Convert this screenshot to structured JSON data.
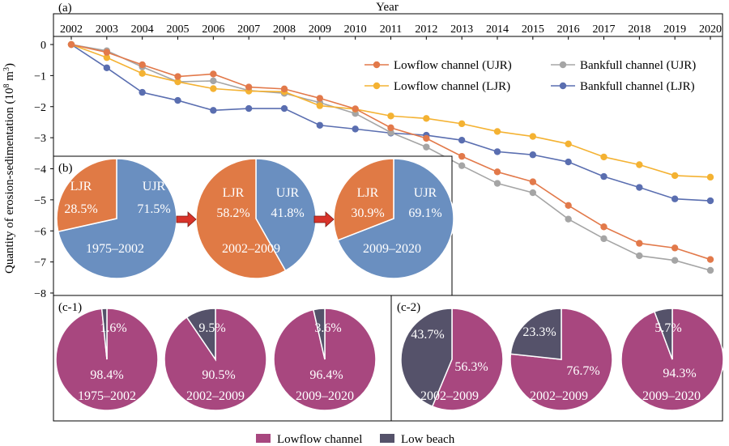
{
  "chart_data": [
    {
      "type": "line",
      "panel_label": "(a)",
      "xlabel": "Year",
      "ylabel": "Quantity of erosion-sedimentation (10",
      "ylabel_sup": "8",
      "ylabel_unit": " m",
      "ylabel_sup2": "3",
      "ylabel_end": ")",
      "xlim": [
        2002,
        2020
      ],
      "ylim": [
        -8,
        0
      ],
      "x_ticks": [
        "2002",
        "2003",
        "2004",
        "2005",
        "2006",
        "2007",
        "2008",
        "2009",
        "2010",
        "2011",
        "2012",
        "2013",
        "2014",
        "2015",
        "2016",
        "2017",
        "2018",
        "2019",
        "2020"
      ],
      "y_ticks": [
        "0",
        "−1",
        "−2",
        "−3",
        "−4",
        "−5",
        "−6",
        "−7",
        "−8"
      ],
      "x": [
        2002,
        2003,
        2004,
        2005,
        2006,
        2007,
        2008,
        2009,
        2010,
        2011,
        2012,
        2013,
        2014,
        2015,
        2016,
        2017,
        2018,
        2019,
        2020
      ],
      "legend_position": "top-right",
      "series": [
        {
          "name": "Lowflow channel (UJR)",
          "color": "#e2794a",
          "values": [
            0,
            -0.25,
            -0.65,
            -1.03,
            -0.95,
            -1.37,
            -1.43,
            -1.73,
            -2.07,
            -2.68,
            -3.02,
            -3.6,
            -4.1,
            -4.42,
            -5.18,
            -5.87,
            -6.4,
            -6.55,
            -6.92
          ]
        },
        {
          "name": "Lowflow channel (LJR)",
          "color": "#f4b232",
          "values": [
            0,
            -0.42,
            -0.93,
            -1.2,
            -1.42,
            -1.5,
            -1.52,
            -1.97,
            -2.08,
            -2.3,
            -2.38,
            -2.55,
            -2.8,
            -2.96,
            -3.2,
            -3.62,
            -3.87,
            -4.22,
            -4.27
          ]
        },
        {
          "name": "Bankfull channel (UJR)",
          "color": "#a5a5a5",
          "values": [
            0,
            -0.2,
            -0.72,
            -1.2,
            -1.17,
            -1.48,
            -1.57,
            -1.87,
            -2.22,
            -2.83,
            -3.3,
            -3.9,
            -4.47,
            -4.77,
            -5.62,
            -6.25,
            -6.8,
            -6.95,
            -7.27
          ]
        },
        {
          "name": "Bankfull channel (LJR)",
          "color": "#5a6eb0",
          "values": [
            0,
            -0.75,
            -1.54,
            -1.8,
            -2.12,
            -2.06,
            -2.06,
            -2.6,
            -2.72,
            -2.85,
            -2.92,
            -3.08,
            -3.45,
            -3.55,
            -3.78,
            -4.25,
            -4.6,
            -4.97,
            -5.03
          ]
        }
      ]
    },
    {
      "type": "pie",
      "panel_label": "(b)",
      "colors": {
        "UJR": "#6a8fc0",
        "LJR": "#e07a45"
      },
      "pies": [
        {
          "period": "1975–2002",
          "slices": [
            {
              "name": "UJR",
              "value": 71.5,
              "label": "71.5%"
            },
            {
              "name": "LJR",
              "value": 28.5,
              "label": "28.5%"
            }
          ]
        },
        {
          "period": "2002–2009",
          "slices": [
            {
              "name": "UJR",
              "value": 41.8,
              "label": "41.8%"
            },
            {
              "name": "LJR",
              "value": 58.2,
              "label": "58.2%"
            }
          ]
        },
        {
          "period": "2009–2020",
          "slices": [
            {
              "name": "UJR",
              "value": 69.1,
              "label": "69.1%"
            },
            {
              "name": "LJR",
              "value": 30.9,
              "label": "30.9%"
            }
          ]
        }
      ]
    },
    {
      "type": "pie",
      "panel_label": "(c-1)",
      "pies": [
        {
          "period": "1975–2002",
          "slices": [
            {
              "name": "Lowflow channel",
              "value": 98.4,
              "label": "98.4%"
            },
            {
              "name": "Low beach",
              "value": 1.6,
              "label": "1.6%"
            }
          ]
        },
        {
          "period": "2002–2009",
          "slices": [
            {
              "name": "Lowflow channel",
              "value": 90.5,
              "label": "90.5%"
            },
            {
              "name": "Low beach",
              "value": 9.5,
              "label": "9.5%"
            }
          ]
        },
        {
          "period": "2009–2020",
          "slices": [
            {
              "name": "Lowflow channel",
              "value": 96.4,
              "label": "96.4%"
            },
            {
              "name": "Low beach",
              "value": 3.6,
              "label": "3.6%"
            }
          ]
        }
      ]
    },
    {
      "type": "pie",
      "panel_label": "(c-2)",
      "pies": [
        {
          "period": "2002–2009",
          "slices": [
            {
              "name": "Lowflow channel",
              "value": 56.3,
              "label": "56.3%"
            },
            {
              "name": "Low beach",
              "value": 43.7,
              "label": "43.7%"
            }
          ]
        },
        {
          "period": "2002–2009",
          "slices": [
            {
              "name": "Lowflow channel",
              "value": 76.7,
              "label": "76.7%"
            },
            {
              "name": "Low beach",
              "value": 23.3,
              "label": "23.3%"
            }
          ]
        },
        {
          "period": "2009–2020",
          "slices": [
            {
              "name": "Lowflow channel",
              "value": 94.3,
              "label": "94.3%"
            },
            {
              "name": "Low beach",
              "value": 5.7,
              "label": "5.7%"
            }
          ]
        }
      ]
    }
  ],
  "bottom_legend": [
    {
      "name": "Lowflow channel",
      "color": "#a8477f"
    },
    {
      "name": "Low beach",
      "color": "#55526a"
    }
  ]
}
